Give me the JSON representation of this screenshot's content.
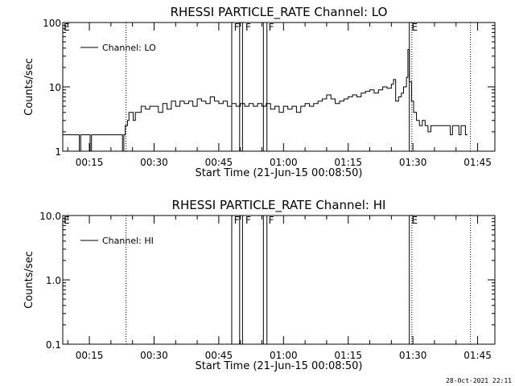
{
  "timestamp": "28-Oct-2021 22:11",
  "chart_data": [
    {
      "type": "line",
      "title": "RHESSI PARTICLE_RATE Channel: LO",
      "xlabel": "Start Time (21-Jun-15 00:08:50)",
      "ylabel": "Counts/sec",
      "y_scale": "log",
      "ylim": [
        1,
        100
      ],
      "y_ticks": [
        1,
        10,
        100
      ],
      "y_tick_labels": [
        "1",
        "10",
        "100"
      ],
      "xlim": [
        "00:08:50",
        "01:49:00"
      ],
      "x_ticks": [
        "00:15",
        "00:30",
        "00:45",
        "01:00",
        "01:15",
        "01:30",
        "01:45"
      ],
      "legend": "Channel: LO",
      "legend_position": "top-left",
      "color": "#000000",
      "series": [
        {
          "name": "Channel: LO",
          "points": [
            [
              "00:08:50",
              1.8
            ],
            [
              "00:10:00",
              1.8
            ],
            [
              "00:11:00",
              1.8
            ],
            [
              "00:12:30",
              1.8
            ],
            [
              "00:12:40",
              1.0
            ],
            [
              "00:13:00",
              1.8
            ],
            [
              "00:14:00",
              1.8
            ],
            [
              "00:15:00",
              1.8
            ],
            [
              "00:15:10",
              1.0
            ],
            [
              "00:15:30",
              1.8
            ],
            [
              "00:16:30",
              1.8
            ],
            [
              "00:17:00",
              1.8
            ],
            [
              "00:18:00",
              1.8
            ],
            [
              "00:19:00",
              1.8
            ],
            [
              "00:20:00",
              1.8
            ],
            [
              "00:21:00",
              1.8
            ],
            [
              "00:22:00",
              1.8
            ],
            [
              "00:22:40",
              1.0
            ],
            [
              "00:23:00",
              1.8
            ],
            [
              "00:23:20",
              2.5
            ],
            [
              "00:23:50",
              3.0
            ],
            [
              "00:24:10",
              4.0
            ],
            [
              "00:24:50",
              4.0
            ],
            [
              "00:25:10",
              3.0
            ],
            [
              "00:25:40",
              4.0
            ],
            [
              "00:26:30",
              4.0
            ],
            [
              "00:27:00",
              5.0
            ],
            [
              "00:28:00",
              4.5
            ],
            [
              "00:29:00",
              5.0
            ],
            [
              "00:30:00",
              5.0
            ],
            [
              "00:31:00",
              4.0
            ],
            [
              "00:32:00",
              5.5
            ],
            [
              "00:33:00",
              4.5
            ],
            [
              "00:34:00",
              6.0
            ],
            [
              "00:35:00",
              5.0
            ],
            [
              "00:36:00",
              6.0
            ],
            [
              "00:37:00",
              5.5
            ],
            [
              "00:38:00",
              6.0
            ],
            [
              "00:39:00",
              5.0
            ],
            [
              "00:40:00",
              6.5
            ],
            [
              "00:41:00",
              6.0
            ],
            [
              "00:42:00",
              5.5
            ],
            [
              "00:43:00",
              7.0
            ],
            [
              "00:44:00",
              6.0
            ],
            [
              "00:45:00",
              5.5
            ],
            [
              "00:46:00",
              6.0
            ],
            [
              "00:47:00",
              5.0
            ],
            [
              "00:48:00",
              5.5
            ],
            [
              "00:49:00",
              5.0
            ],
            [
              "00:50:00",
              5.5
            ],
            [
              "00:51:00",
              5.0
            ],
            [
              "00:52:00",
              5.5
            ],
            [
              "00:53:00",
              5.0
            ],
            [
              "00:54:00",
              5.5
            ],
            [
              "00:55:00",
              5.0
            ],
            [
              "00:56:00",
              5.5
            ],
            [
              "00:57:00",
              4.5
            ],
            [
              "00:58:00",
              5.0
            ],
            [
              "00:59:00",
              4.0
            ],
            [
              "01:00:00",
              5.0
            ],
            [
              "01:01:00",
              4.5
            ],
            [
              "01:02:00",
              5.0
            ],
            [
              "01:03:00",
              4.0
            ],
            [
              "01:04:00",
              5.0
            ],
            [
              "01:05:00",
              5.5
            ],
            [
              "01:06:00",
              5.0
            ],
            [
              "01:07:00",
              5.5
            ],
            [
              "01:08:00",
              6.0
            ],
            [
              "01:09:00",
              6.5
            ],
            [
              "01:10:00",
              7.5
            ],
            [
              "01:11:00",
              6.5
            ],
            [
              "01:12:00",
              5.5
            ],
            [
              "01:13:00",
              6.0
            ],
            [
              "01:14:00",
              6.5
            ],
            [
              "01:15:00",
              7.0
            ],
            [
              "01:16:00",
              7.5
            ],
            [
              "01:17:00",
              7.0
            ],
            [
              "01:18:00",
              8.0
            ],
            [
              "01:19:00",
              8.5
            ],
            [
              "01:20:00",
              9.0
            ],
            [
              "01:21:00",
              8.0
            ],
            [
              "01:22:00",
              9.0
            ],
            [
              "01:23:00",
              10.0
            ],
            [
              "01:24:00",
              9.5
            ],
            [
              "01:25:00",
              11.0
            ],
            [
              "01:25:30",
              13.0
            ],
            [
              "01:26:00",
              6.0
            ],
            [
              "01:26:40",
              7.0
            ],
            [
              "01:27:20",
              8.0
            ],
            [
              "01:27:50",
              10.0
            ],
            [
              "01:28:30",
              14.0
            ],
            [
              "01:28:50",
              38.0
            ],
            [
              "01:29:10",
              12.0
            ],
            [
              "01:29:40",
              6.0
            ],
            [
              "01:30:10",
              4.0
            ],
            [
              "01:30:50",
              3.0
            ],
            [
              "01:31:30",
              2.5
            ],
            [
              "01:32:10",
              3.0
            ],
            [
              "01:32:50",
              2.5
            ],
            [
              "01:33:30",
              2.0
            ],
            [
              "01:34:10",
              2.5
            ],
            [
              "01:35:00",
              2.5
            ],
            [
              "01:36:00",
              2.5
            ],
            [
              "01:37:00",
              2.5
            ],
            [
              "01:38:00",
              2.5
            ],
            [
              "01:38:40",
              1.8
            ],
            [
              "01:39:10",
              2.5
            ],
            [
              "01:40:00",
              2.5
            ],
            [
              "01:40:40",
              1.8
            ],
            [
              "01:41:10",
              2.5
            ],
            [
              "01:41:40",
              2.5
            ],
            [
              "01:42:10",
              1.8
            ],
            [
              "01:42:40",
              1.8
            ]
          ]
        }
      ],
      "flag_labels": [
        {
          "text": "E",
          "time": "00:08:50"
        },
        {
          "text": "F",
          "time": "00:48:20"
        },
        {
          "text": "F",
          "time": "00:51:00"
        },
        {
          "text": "F",
          "time": "00:56:20"
        },
        {
          "text": "E",
          "time": "01:29:30"
        }
      ],
      "solid_markers": [
        "00:48:00",
        "00:49:50",
        "00:50:30",
        "00:55:20",
        "00:56:10",
        "01:29:10"
      ],
      "dotted_markers": [
        "00:23:30",
        "01:29:45",
        "01:43:20"
      ]
    },
    {
      "type": "line",
      "title": "RHESSI PARTICLE_RATE Channel: HI",
      "xlabel": "Start Time (21-Jun-15 00:08:50)",
      "ylabel": "Counts/sec",
      "y_scale": "log",
      "ylim": [
        0.1,
        10
      ],
      "y_ticks": [
        0.1,
        1,
        10
      ],
      "y_tick_labels": [
        "0.1",
        "1.0",
        "10.0"
      ],
      "xlim": [
        "00:08:50",
        "01:49:00"
      ],
      "x_ticks": [
        "00:15",
        "00:30",
        "00:45",
        "01:00",
        "01:15",
        "01:30",
        "01:45"
      ],
      "legend": "Channel: HI",
      "legend_position": "top-left",
      "color": "#000000",
      "series": [
        {
          "name": "Channel: HI",
          "points": []
        }
      ],
      "flag_labels": [
        {
          "text": "E",
          "time": "00:08:50"
        },
        {
          "text": "F",
          "time": "00:48:20"
        },
        {
          "text": "F",
          "time": "00:51:00"
        },
        {
          "text": "F",
          "time": "00:56:20"
        },
        {
          "text": "E",
          "time": "01:29:30"
        }
      ],
      "solid_markers": [
        "00:48:00",
        "00:49:50",
        "00:50:30",
        "00:55:20",
        "00:56:10",
        "01:29:10"
      ],
      "dotted_markers": [
        "00:23:30",
        "01:29:45",
        "01:43:20"
      ]
    }
  ]
}
